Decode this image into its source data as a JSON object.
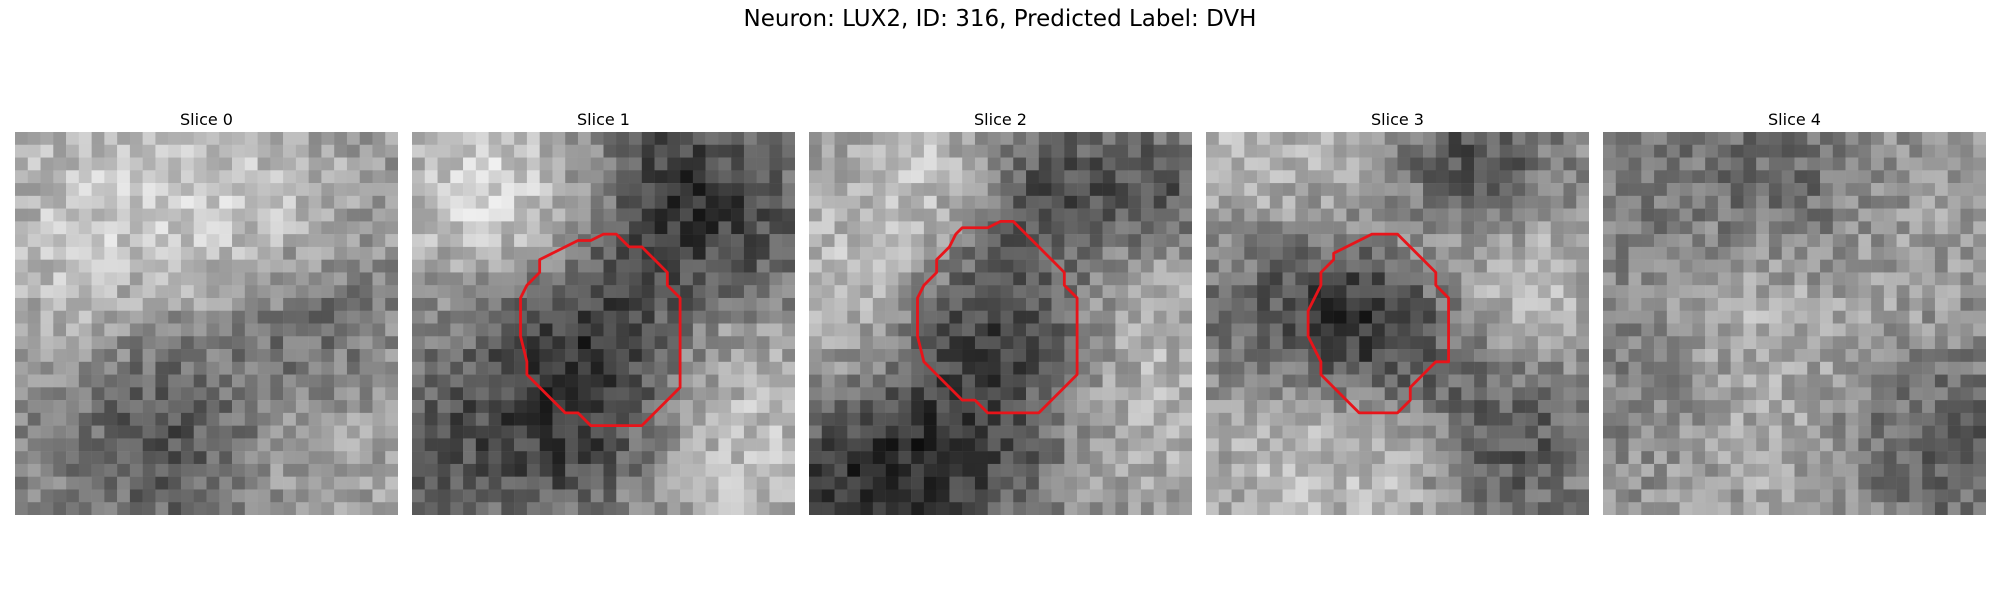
{
  "figure": {
    "title": "Neuron: LUX2, ID: 316, Predicted Label: DVH"
  },
  "panels": [
    {
      "title": "Slice 0",
      "has_contour": false
    },
    {
      "title": "Slice 1",
      "has_contour": true
    },
    {
      "title": "Slice 2",
      "has_contour": true
    },
    {
      "title": "Slice 3",
      "has_contour": true
    },
    {
      "title": "Slice 4",
      "has_contour": false
    }
  ],
  "colors": {
    "contour": "#e8141a",
    "background": "#ffffff"
  }
}
